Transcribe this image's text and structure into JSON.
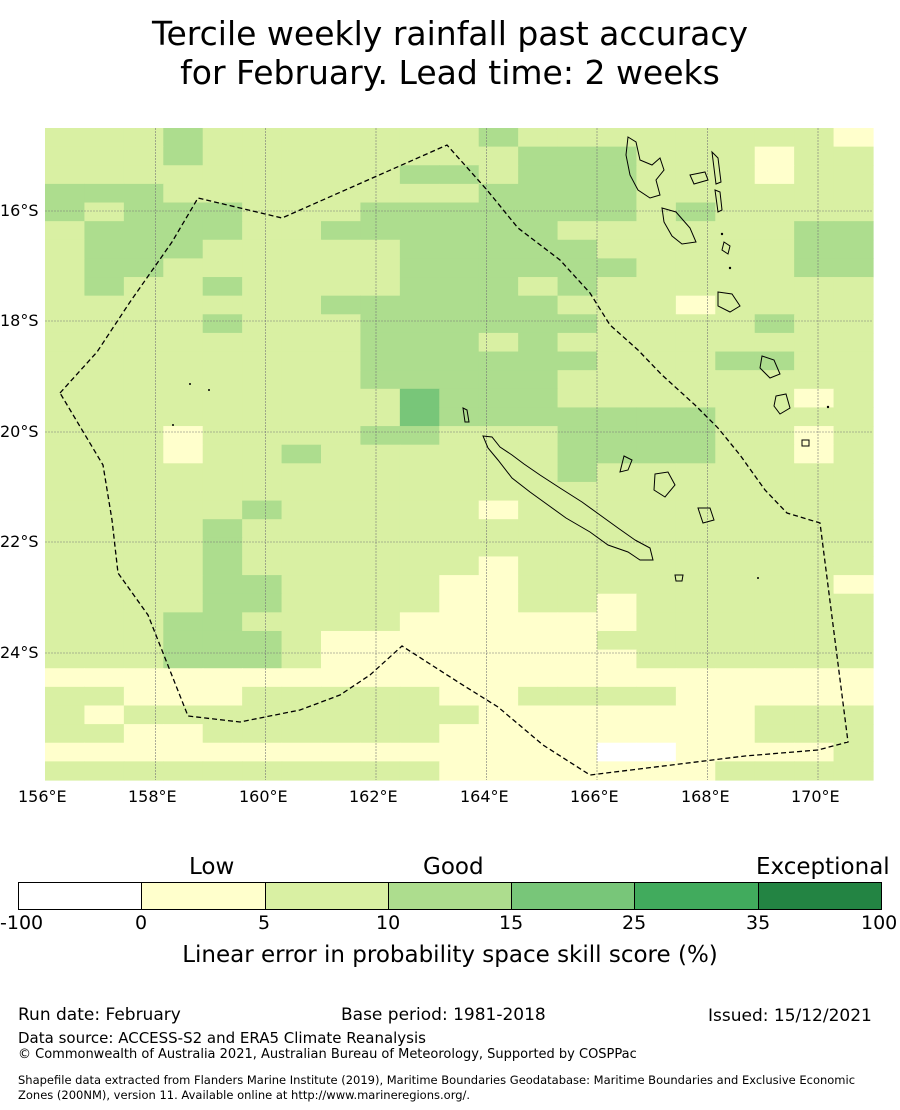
{
  "title": {
    "line1": "Tercile weekly rainfall past accuracy",
    "line2": "for February. Lead time: 2 weeks"
  },
  "map": {
    "lon_range": [
      156,
      171
    ],
    "lat_range": [
      -14.5,
      -26.3
    ],
    "lon_ticks": [
      "156°E",
      "158°E",
      "160°E",
      "162°E",
      "164°E",
      "166°E",
      "168°E",
      "170°E"
    ],
    "lat_ticks": [
      "16°S",
      "18°S",
      "20°S",
      "22°S",
      "24°S"
    ],
    "cell_palette": [
      "#ffffff",
      "#ffffcc",
      "#d9f0a3",
      "#addd8e",
      "#78c679",
      "#41ab5d",
      "#238443"
    ],
    "skill_class_grid": [
      "222322222223222222221",
      "222322222222333222122",
      "222222222332333222122",
      "333222222223333222222",
      "323332223333333232222",
      "233332233333322222233",
      "233322222333332222233",
      "233222222333333222233",
      "232232222333232222222",
      "222222233333322212222",
      "222232223333332222322",
      "222222223332322222222",
      "222222223333332223322",
      "222222223333322222222",
      "222222222433322222212",
      "222222222433333332222",
      "222122223322233332212",
      "222122322222233332212",
      "222222222222232222222",
      "222222222222222222222",
      "222223222221222222222",
      "222232222222222222222",
      "222232222222222222222",
      "222232222221222222222",
      "222233222211222222221",
      "222233222211221222222",
      "222332222111111222222",
      "222333211111112222222",
      "222333211111111222222",
      "111111111111111111111",
      "221112222211222211111",
      "212222222221111111222",
      "221122222211111111222",
      "111111111111110011112",
      "222222222211111112222"
    ]
  },
  "colorbar": {
    "categories": [
      "Low",
      "Good",
      "Exceptional"
    ],
    "ticks": [
      "-100",
      "0",
      "5",
      "10",
      "15",
      "25",
      "35",
      "100"
    ],
    "colors": [
      "#ffffff",
      "#ffffcc",
      "#d9f0a3",
      "#addd8e",
      "#78c679",
      "#41ab5d",
      "#238443"
    ],
    "label": "Linear error in probability space skill score (%)"
  },
  "footer": {
    "run_date": "Run date: February",
    "base_period": "Base period: 1981-2018",
    "issued": "Issued: 15/12/2021",
    "data_source": "Data source: ACCESS-S2 and ERA5 Climate Reanalysis",
    "copyright": "© Commonwealth of Australia 2021, Australian Bureau of Meteorology, Supported by COSPPac",
    "shapefile_line1": "Shapefile data extracted from Flanders Marine Institute (2019), Maritime Boundaries Geodatabase: Maritime Boundaries and Exclusive Economic",
    "shapefile_line2": "Zones (200NM), version 11. Available online at http://www.marineregions.org/."
  }
}
